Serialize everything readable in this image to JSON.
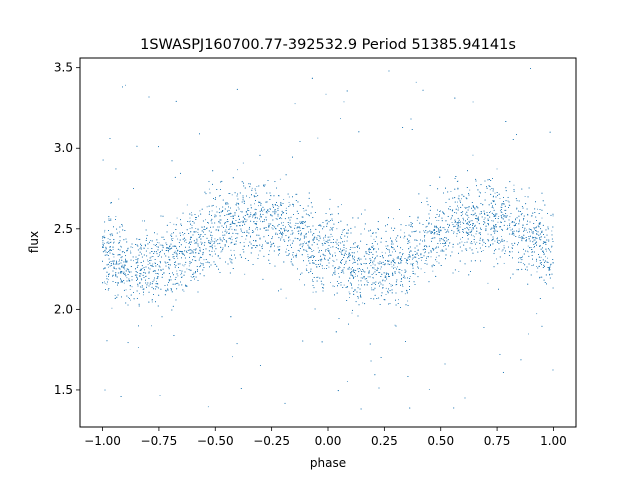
{
  "chart_data": {
    "type": "scatter",
    "title": "1SWASPJ160700.77-392532.9 Period 51385.94141s",
    "xlabel": "phase",
    "ylabel": "flux",
    "xlim": [
      -1.1,
      1.1
    ],
    "ylim": [
      1.27,
      3.56
    ],
    "xticks": [
      -1.0,
      -0.75,
      -0.5,
      -0.25,
      0.0,
      0.25,
      0.5,
      0.75,
      1.0
    ],
    "xtick_labels": [
      "−1.00",
      "−0.75",
      "−0.50",
      "−0.25",
      "0.00",
      "0.25",
      "0.50",
      "0.75",
      "1.00"
    ],
    "yticks": [
      1.5,
      2.0,
      2.5,
      3.0,
      3.5
    ],
    "ytick_labels": [
      "1.5",
      "2.0",
      "2.5",
      "3.0",
      "3.5"
    ],
    "grid": false,
    "marker_color": "#1f77b4",
    "series": [
      {
        "model": {
          "mean_flux": 2.41,
          "amplitude": 0.15,
          "phase_of_max": 0.68,
          "period_in_phase": 1.0,
          "scatter_sd": 0.12,
          "outlier_range": [
            1.35,
            3.5
          ],
          "n_points": 9000,
          "x_range": [
            -1.0,
            1.0
          ]
        }
      }
    ]
  }
}
